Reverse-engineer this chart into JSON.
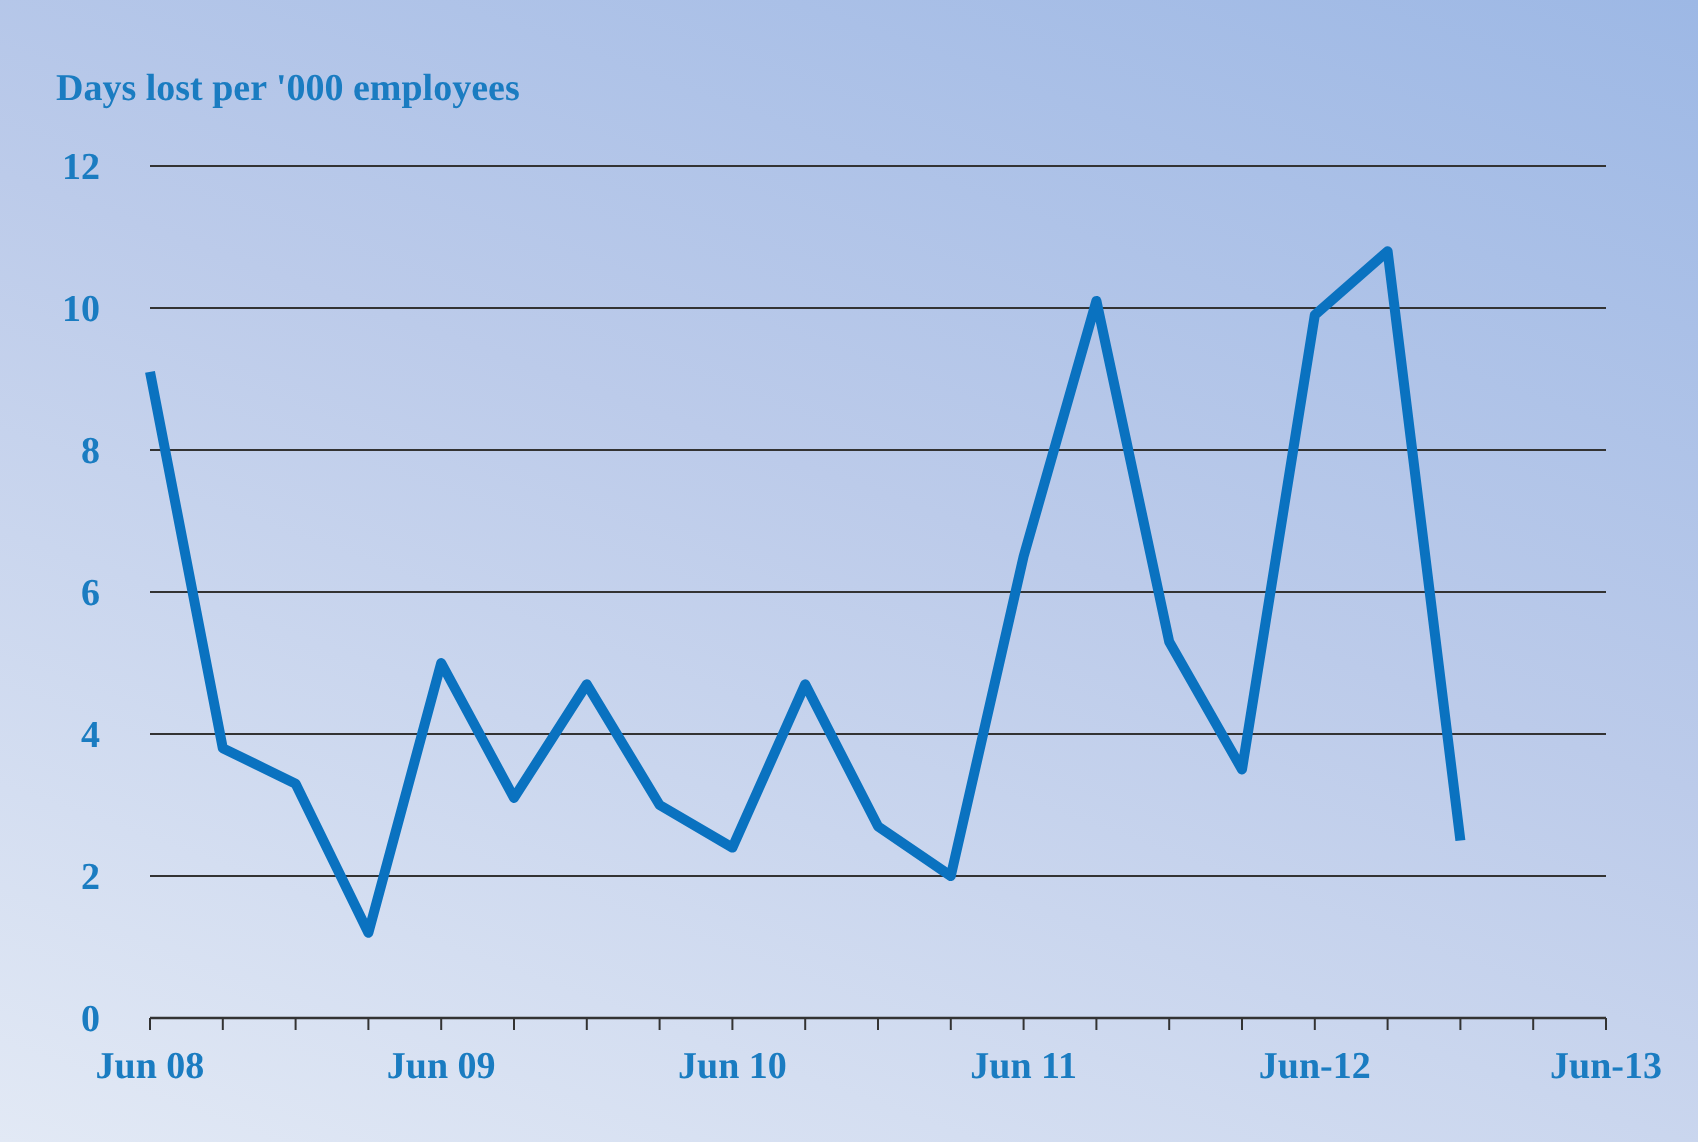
{
  "chart_data": {
    "type": "line",
    "title": "Days lost per '000 employees",
    "categories": [
      "Jun 08",
      null,
      null,
      null,
      "Jun 09",
      null,
      null,
      null,
      "Jun 10",
      null,
      null,
      null,
      "Jun 11",
      null,
      null,
      null,
      "Jun-12",
      null,
      null,
      null,
      "Jun-13"
    ],
    "series": [
      {
        "color": "#0a72c0",
        "values": [
          9.1,
          3.8,
          3.3,
          1.2,
          5.0,
          3.1,
          4.7,
          3.0,
          2.4,
          4.7,
          2.7,
          2.0,
          6.5,
          10.1,
          5.3,
          3.5,
          9.9,
          10.8,
          2.5,
          null,
          null
        ]
      }
    ],
    "ylim": [
      0,
      12
    ],
    "yticks": [
      0,
      2,
      4,
      6,
      8,
      10,
      12
    ],
    "grid": "y",
    "marker": "none",
    "line_style": "solid"
  }
}
